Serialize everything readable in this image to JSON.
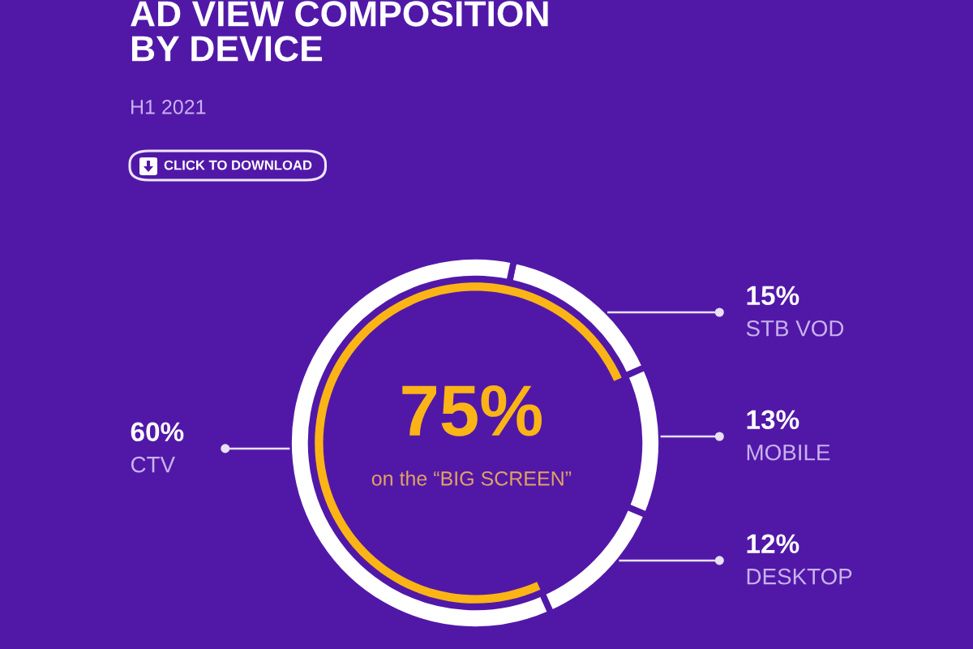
{
  "chart_data": [
    {
      "type": "donut",
      "title": "AD VIEW COMPOSITION BY DEVICE",
      "subtitle": "H1 2021",
      "annotations": [
        "CLICK TO DOWNLOAD"
      ],
      "categories": [
        "STB VOD",
        "MOBILE",
        "DESKTOP",
        "CTV"
      ],
      "values": [
        15,
        13,
        12,
        60
      ],
      "colors": [
        "#ffffff",
        "#ffffff",
        "#ffffff",
        "#ffffff"
      ],
      "value_labels": [
        "15%",
        "13%",
        "12%",
        "60%"
      ]
    },
    {
      "type": "other",
      "values": [
        75
      ],
      "colors": [
        "#fbb416"
      ],
      "value_labels": [
        "75%"
      ],
      "annotations": [
        "on the “BIG SCREEN”"
      ]
    }
  ]
}
